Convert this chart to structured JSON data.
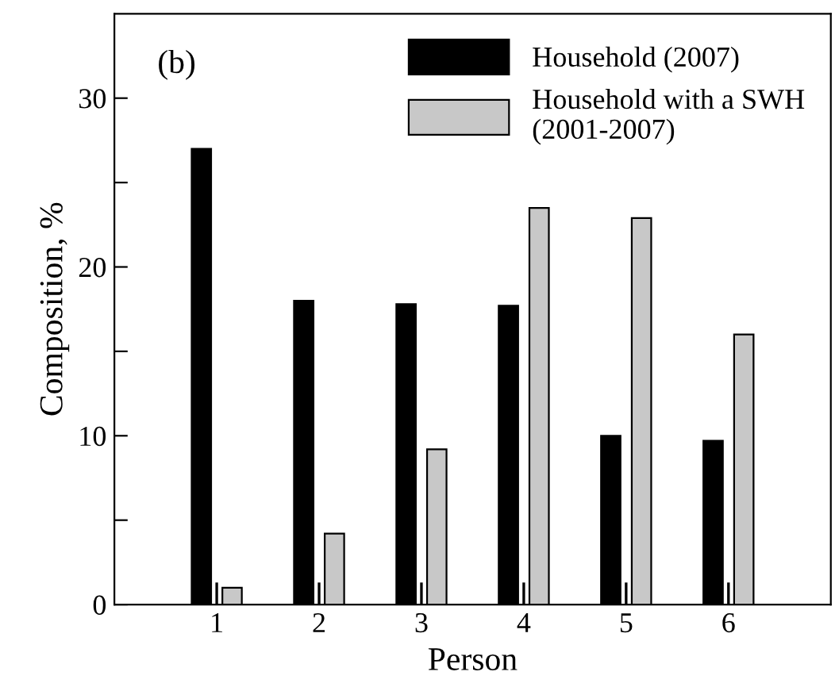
{
  "chart_data": {
    "type": "bar",
    "xlabel": "Person",
    "ylabel": "Composition, %",
    "categories": [
      "1",
      "2",
      "3",
      "4",
      "5",
      "6"
    ],
    "series": [
      {
        "name": "Household (2007)",
        "color": "#000000",
        "values": [
          27.0,
          18.0,
          17.8,
          17.7,
          10.0,
          9.7
        ]
      },
      {
        "name": "Household with a SWH\n(2001-2007)",
        "color": "#c8c8c8",
        "values": [
          1.0,
          4.2,
          9.2,
          23.5,
          22.9,
          16.0
        ]
      }
    ],
    "ylim": [
      0,
      35
    ],
    "yticks": [
      0,
      {
        "value": 5,
        "label": null
      },
      10,
      {
        "value": 15,
        "label": null
      },
      20,
      {
        "value": 25,
        "label": null
      },
      30
    ],
    "annotations": [
      "(b)"
    ],
    "legend": "top right",
    "grid": false
  }
}
